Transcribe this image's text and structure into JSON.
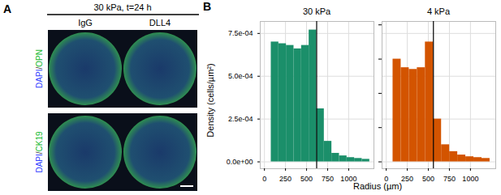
{
  "panel_a": {
    "label": "A",
    "header": "30 kPa, t=24 h",
    "columns": [
      "IgG",
      "DLL4"
    ],
    "rows": [
      {
        "segments": [
          "DAPI",
          "/",
          "OPN"
        ],
        "colors": [
          "#3344ff",
          "#333333",
          "#22bb33"
        ]
      },
      {
        "segments": [
          "DAPI",
          "/",
          "CK19"
        ],
        "colors": [
          "#3344ff",
          "#333333",
          "#22bb33"
        ]
      }
    ]
  },
  "panel_b": {
    "label": "B",
    "y_label": "Density (cells/µm²)",
    "x_label": "Radius (µm)"
  },
  "chart_data": [
    {
      "type": "histogram",
      "title": "30 kPa",
      "color": "#1b8f6a",
      "bins": [
        80,
        170,
        260,
        350,
        440,
        530,
        620,
        710,
        800,
        890,
        980,
        1070,
        1160,
        1250
      ],
      "values": [
        0.0007,
        0.00069,
        0.00068,
        0.00066,
        0.00068,
        0.00077,
        0.00031,
        0.00012,
        5e-05,
        3.5e-05,
        2.5e-05,
        2e-05,
        1.5e-05
      ],
      "reference_line": 620,
      "xlim": [
        -50,
        1300
      ],
      "ylim": [
        -4e-05,
        0.00082
      ],
      "xticks": [
        0,
        250,
        500,
        750,
        1000
      ],
      "yticks": [
        {
          "value": 0,
          "label": "0.0e+00"
        },
        {
          "value": 0.00025,
          "label": "2.5e-04"
        },
        {
          "value": 0.0005,
          "label": "5.0e-04"
        },
        {
          "value": 0.00075,
          "label": "7.5e-04"
        }
      ],
      "grid": true
    },
    {
      "type": "histogram",
      "title": "4 kPa",
      "color": "#d35400",
      "bins": [
        80,
        176,
        272,
        368,
        464,
        560,
        656,
        752,
        848,
        944,
        1040,
        1136,
        1232
      ],
      "values": [
        0.0006,
        0.00055,
        0.00054,
        0.00055,
        0.0007,
        0.00025,
        0.0001,
        6e-05,
        4e-05,
        3e-05,
        2.5e-05,
        2e-05
      ],
      "reference_line": 560,
      "xlim": [
        -50,
        1300
      ],
      "ylim": [
        -4e-05,
        0.00082
      ],
      "xticks": [
        0,
        250,
        500,
        750,
        1000
      ],
      "yticks": [
        {
          "value": 0,
          "label": "0.0e+00"
        },
        {
          "value": 0.00025,
          "label": "2.5e-04"
        },
        {
          "value": 0.0005,
          "label": "5.0e-04"
        },
        {
          "value": 0.00075,
          "label": "7.5e-04"
        }
      ],
      "grid": true,
      "tick_labels": "x"
    }
  ]
}
